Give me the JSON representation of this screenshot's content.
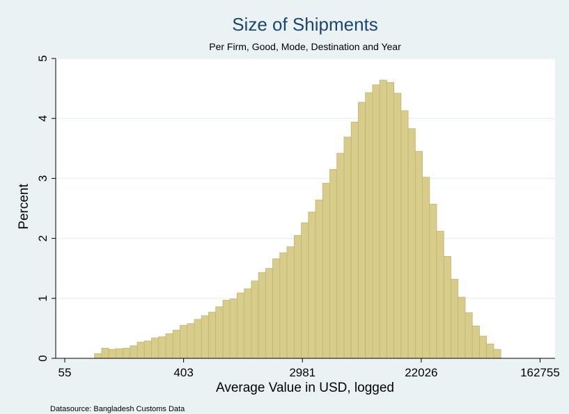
{
  "chart_data": {
    "type": "bar",
    "title": "Size of Shipments",
    "subtitle": "Per Firm, Good, Mode, Destination and Year",
    "xlabel": "Average Value in USD, logged",
    "ylabel": "Percent",
    "x_scale": "log",
    "xlim": [
      4.0,
      12.1
    ],
    "ylim": [
      0,
      5
    ],
    "bin_start": 4.5,
    "bin_width": 0.12,
    "values": [
      0.08,
      0.17,
      0.15,
      0.16,
      0.17,
      0.21,
      0.27,
      0.29,
      0.34,
      0.36,
      0.41,
      0.47,
      0.55,
      0.58,
      0.65,
      0.71,
      0.77,
      0.86,
      0.97,
      0.99,
      1.09,
      1.16,
      1.29,
      1.43,
      1.5,
      1.66,
      1.76,
      1.86,
      2.05,
      2.26,
      2.44,
      2.64,
      2.92,
      3.15,
      3.42,
      3.69,
      3.94,
      4.27,
      4.43,
      4.56,
      4.64,
      4.6,
      4.42,
      4.13,
      3.83,
      3.45,
      3.02,
      2.57,
      2.12,
      1.7,
      1.32,
      1.02,
      0.76,
      0.54,
      0.37,
      0.24,
      0.15
    ],
    "x_ticks": [
      {
        "value": 4.0,
        "label": "55"
      },
      {
        "value": 6.0,
        "label": "403"
      },
      {
        "value": 8.0,
        "label": "2981"
      },
      {
        "value": 10.0,
        "label": "22026"
      },
      {
        "value": 12.0,
        "label": "162755"
      }
    ],
    "y_ticks": [
      {
        "value": 0,
        "label": "0"
      },
      {
        "value": 1,
        "label": "1"
      },
      {
        "value": 2,
        "label": "2"
      },
      {
        "value": 3,
        "label": "3"
      },
      {
        "value": 4,
        "label": "4"
      },
      {
        "value": 5,
        "label": "5"
      }
    ],
    "grid": true,
    "colors": {
      "background": "#eaf2f3",
      "plot_background": "#ffffff",
      "bar_fill": "#d8cc8b",
      "bar_stroke": "#c2b573",
      "title": "#1a476f",
      "grid": "#eaf2f3"
    }
  },
  "footnote": "Datasource: Bangladesh Customs Data"
}
